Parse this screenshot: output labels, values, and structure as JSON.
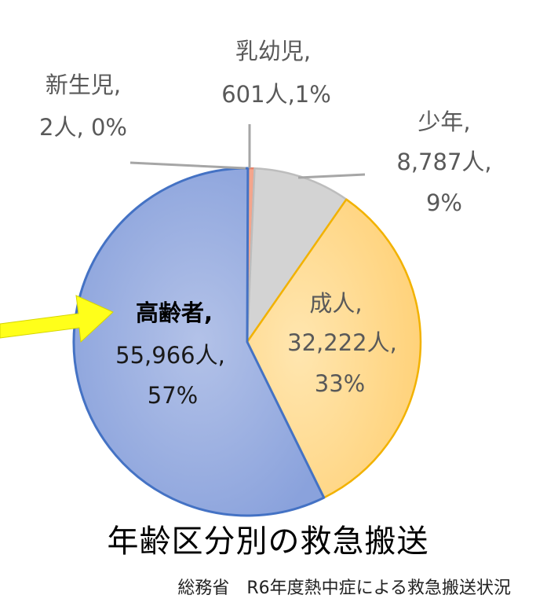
{
  "chart_data": {
    "type": "pie",
    "title": "年齢区分別の救急搬送",
    "source": "総務省　R6年度熱中症による救急搬送状況",
    "slices": [
      {
        "category": "新生児",
        "count": "2人",
        "pct": "0%",
        "value": 2,
        "color": "#f2b8a2",
        "stroke": "#e07a5f"
      },
      {
        "category": "乳幼児",
        "count": "601人",
        "pct": "1%",
        "value": 601,
        "color": "#f4a58c",
        "stroke": "#e8836a"
      },
      {
        "category": "少年",
        "count": "8,787人",
        "pct": "9%",
        "value": 8787,
        "color": "#d3d3d3",
        "stroke": "#bdbdbd"
      },
      {
        "category": "成人",
        "count": "32,222人",
        "pct": "33%",
        "value": 32222,
        "color": "#ffd98c",
        "stroke": "#f2b200"
      },
      {
        "category": "高齢者",
        "count": "55,966人",
        "pct": "57%",
        "value": 55966,
        "color": "#9cb0e0",
        "stroke": "#4472c4"
      }
    ],
    "highlight": "高齢者",
    "arrow_color": "#ffff1a"
  }
}
